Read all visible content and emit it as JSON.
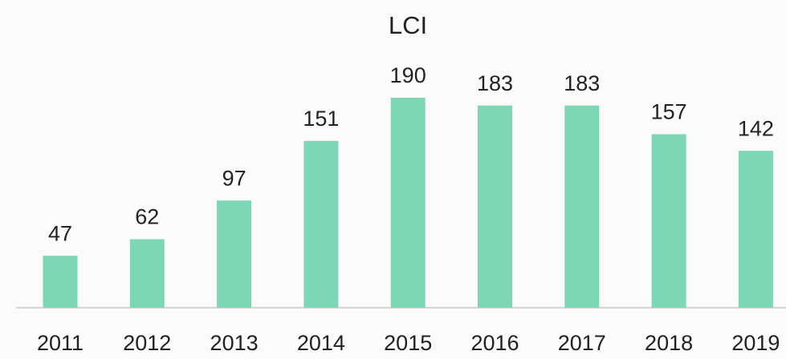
{
  "chart_data": {
    "type": "bar",
    "title": "LCI",
    "categories": [
      "2011",
      "2012",
      "2013",
      "2014",
      "2015",
      "2016",
      "2017",
      "2018",
      "2019"
    ],
    "values": [
      47,
      62,
      97,
      151,
      190,
      183,
      183,
      157,
      142
    ],
    "color": "#7dd6b4"
  }
}
